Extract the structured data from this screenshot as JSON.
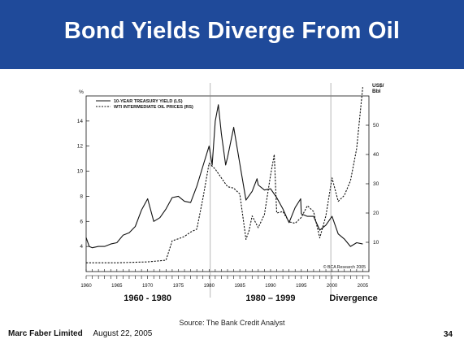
{
  "slide": {
    "title": "Bond Yields Diverge From Oil",
    "source": "Source: The Bank Credit Analyst",
    "company": "Marc Faber Limited",
    "date": "August 22, 2005",
    "page_number": "34"
  },
  "colors": {
    "banner": "#1f4a9a",
    "line": "#111111"
  },
  "chart_data": {
    "type": "line",
    "title": "",
    "left_axis_unit": "%",
    "right_axis_unit": "US$/ Bbl",
    "x_ticks": [
      "1960",
      "1965",
      "1970",
      "1975",
      "1980",
      "1985",
      "1990",
      "1995",
      "2000",
      "2005"
    ],
    "xlim": [
      1960,
      2006
    ],
    "ylim_left": [
      2,
      16
    ],
    "ylim_right": [
      0,
      60
    ],
    "y_ticks_left": [
      "4",
      "6",
      "8",
      "10",
      "12",
      "14"
    ],
    "y_ticks_right": [
      "10",
      "20",
      "30",
      "40",
      "50"
    ],
    "grid": false,
    "legend_position": "top-left",
    "vertical_markers": [
      1980.2,
      1999.8
    ],
    "period_labels": [
      "1960 - 1980",
      "1980 – 1999",
      "Divergence"
    ],
    "watermark": "© BCA Research 2005",
    "series": [
      {
        "name": "10-YEAR TREASURY YIELD (LS)",
        "axis": "left",
        "style": "solid",
        "points": [
          [
            1960,
            4.7
          ],
          [
            1960.5,
            4.0
          ],
          [
            1961,
            3.9
          ],
          [
            1962,
            4.0
          ],
          [
            1963,
            4.0
          ],
          [
            1964,
            4.2
          ],
          [
            1965,
            4.3
          ],
          [
            1966,
            4.9
          ],
          [
            1967,
            5.1
          ],
          [
            1968,
            5.6
          ],
          [
            1969,
            6.9
          ],
          [
            1970,
            7.8
          ],
          [
            1971,
            6.0
          ],
          [
            1972,
            6.3
          ],
          [
            1973,
            7.0
          ],
          [
            1974,
            7.9
          ],
          [
            1975,
            8.0
          ],
          [
            1976,
            7.6
          ],
          [
            1977,
            7.5
          ],
          [
            1978,
            8.8
          ],
          [
            1979,
            10.4
          ],
          [
            1980,
            12.0
          ],
          [
            1980.5,
            10.5
          ],
          [
            1981,
            14.0
          ],
          [
            1981.5,
            15.3
          ],
          [
            1982,
            13.0
          ],
          [
            1982.7,
            10.5
          ],
          [
            1983,
            11.1
          ],
          [
            1984,
            13.5
          ],
          [
            1985,
            10.6
          ],
          [
            1986,
            7.7
          ],
          [
            1987,
            8.4
          ],
          [
            1987.8,
            9.4
          ],
          [
            1988,
            8.9
          ],
          [
            1989,
            8.5
          ],
          [
            1990,
            8.6
          ],
          [
            1991,
            7.9
          ],
          [
            1992,
            7.0
          ],
          [
            1993,
            5.9
          ],
          [
            1994,
            7.1
          ],
          [
            1994.9,
            7.8
          ],
          [
            1995,
            6.6
          ],
          [
            1996,
            6.4
          ],
          [
            1997,
            6.4
          ],
          [
            1998,
            5.3
          ],
          [
            1999,
            5.7
          ],
          [
            2000,
            6.4
          ],
          [
            2001,
            5.0
          ],
          [
            2002,
            4.6
          ],
          [
            2003,
            4.0
          ],
          [
            2004,
            4.3
          ],
          [
            2005,
            4.2
          ]
        ]
      },
      {
        "name": "WTI INTERMEDIATE OIL PRICES (RS)",
        "axis": "right",
        "style": "dashed",
        "points": [
          [
            1960,
            3.0
          ],
          [
            1965,
            3.0
          ],
          [
            1970,
            3.3
          ],
          [
            1973,
            3.9
          ],
          [
            1974,
            10.5
          ],
          [
            1975,
            11.2
          ],
          [
            1976,
            12.0
          ],
          [
            1977,
            13.5
          ],
          [
            1978,
            14.5
          ],
          [
            1979,
            25.0
          ],
          [
            1980,
            37.0
          ],
          [
            1981,
            35.0
          ],
          [
            1982,
            32.0
          ],
          [
            1983,
            29.0
          ],
          [
            1984,
            28.5
          ],
          [
            1985,
            26.5
          ],
          [
            1986,
            11.0
          ],
          [
            1986.5,
            14.0
          ],
          [
            1987,
            19.0
          ],
          [
            1988,
            15.0
          ],
          [
            1989,
            19.5
          ],
          [
            1990,
            33.0
          ],
          [
            1990.6,
            40.0
          ],
          [
            1991,
            20.0
          ],
          [
            1992,
            20.5
          ],
          [
            1993,
            17.0
          ],
          [
            1994,
            16.5
          ],
          [
            1995,
            18.5
          ],
          [
            1996,
            22.5
          ],
          [
            1997,
            20.5
          ],
          [
            1998,
            11.5
          ],
          [
            1999,
            19.0
          ],
          [
            2000,
            32.0
          ],
          [
            2001,
            24.0
          ],
          [
            2002,
            26.0
          ],
          [
            2003,
            31.0
          ],
          [
            2004,
            42.0
          ],
          [
            2005,
            63.0
          ]
        ]
      }
    ]
  }
}
